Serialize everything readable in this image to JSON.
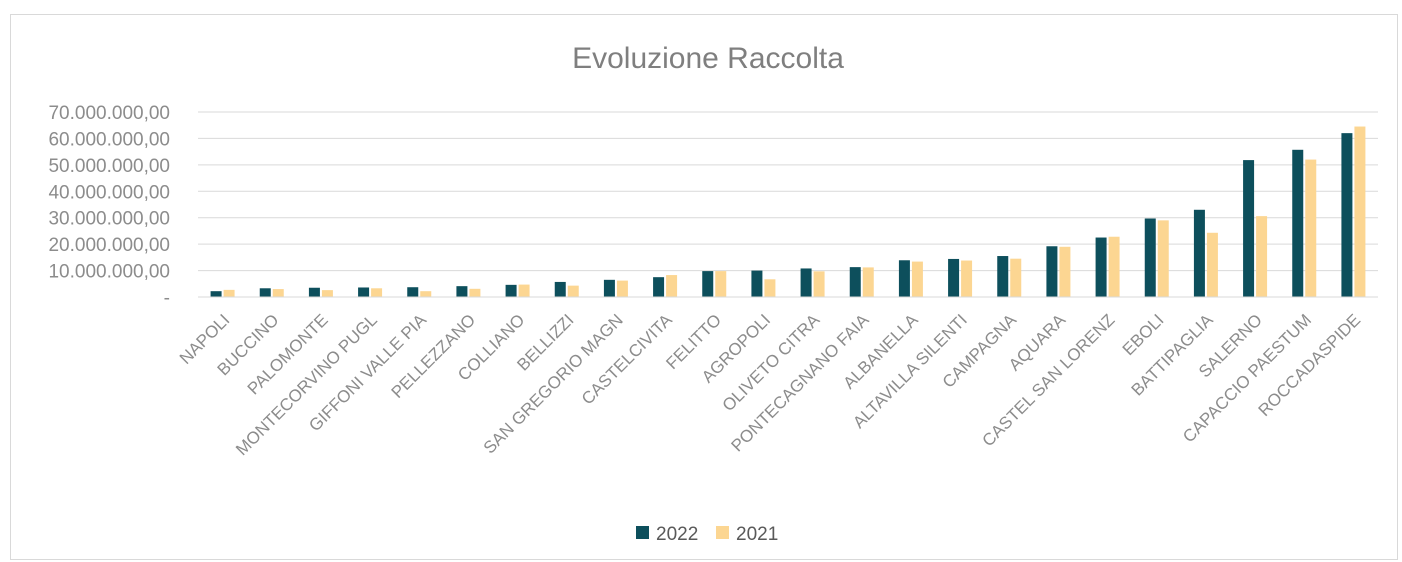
{
  "chart_data": {
    "type": "bar",
    "title": "Evoluzione Raccolta",
    "xlabel": "",
    "ylabel": "",
    "ylim": [
      0,
      70000000
    ],
    "yticks": [
      {
        "value": 0,
        "label": "-"
      },
      {
        "value": 10000000,
        "label": "10.000.000,00"
      },
      {
        "value": 20000000,
        "label": "20.000.000,00"
      },
      {
        "value": 30000000,
        "label": "30.000.000,00"
      },
      {
        "value": 40000000,
        "label": "40.000.000,00"
      },
      {
        "value": 50000000,
        "label": "50.000.000,00"
      },
      {
        "value": 60000000,
        "label": "60.000.000,00"
      },
      {
        "value": 70000000,
        "label": "70.000.000,00"
      }
    ],
    "grid": true,
    "legend_position": "bottom",
    "categories": [
      "NAPOLI",
      "BUCCINO",
      "PALOMONTE",
      "MONTECORVINO PUGL",
      "GIFFONI VALLE PIA",
      "PELLEZZANO",
      "COLLIANO",
      "BELLIZZI",
      "SAN GREGORIO MAGN",
      "CASTELCIVITA",
      "FELITTO",
      "AGROPOLI",
      "OLIVETO CITRA",
      "PONTECAGNANO FAIA",
      "ALBANELLA",
      "ALTAVILLA SILENTI",
      "CAMPAGNA",
      "AQUARA",
      "CASTEL SAN LORENZ",
      "EBOLI",
      "BATTIPAGLIA",
      "SALERNO",
      "CAPACCIO PAESTUM",
      "ROCCADASPIDE"
    ],
    "series": [
      {
        "name": "2022",
        "color": "#0d4f5c",
        "values": [
          2200000,
          3300000,
          3500000,
          3600000,
          3700000,
          4100000,
          4600000,
          5700000,
          6500000,
          7500000,
          9800000,
          10000000,
          10800000,
          11300000,
          13900000,
          14400000,
          15500000,
          19200000,
          22500000,
          29700000,
          33000000,
          51800000,
          55700000,
          62000000
        ]
      },
      {
        "name": "2021",
        "color": "#fcd692",
        "values": [
          2700000,
          3000000,
          2600000,
          3300000,
          2200000,
          3100000,
          4700000,
          4300000,
          6200000,
          8300000,
          9800000,
          6700000,
          9700000,
          11200000,
          13400000,
          13800000,
          14500000,
          19000000,
          22800000,
          29000000,
          24300000,
          30600000,
          52000000,
          64500000
        ]
      }
    ]
  }
}
